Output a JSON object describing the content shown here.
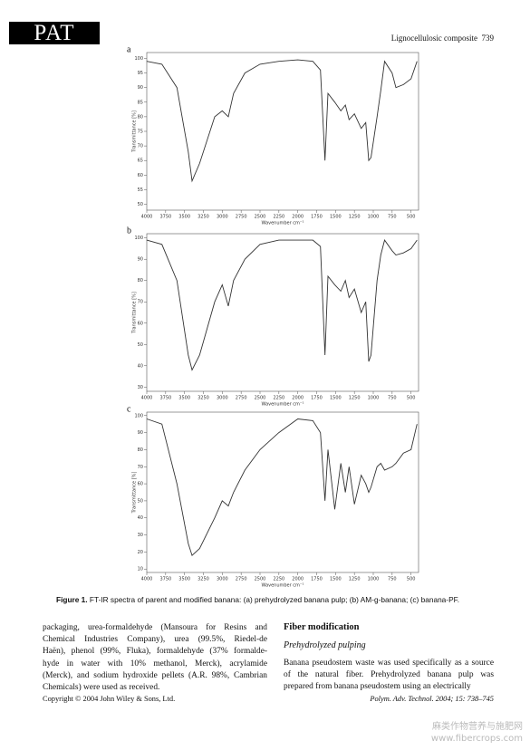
{
  "header": {
    "logo": "PAT",
    "running_title": "Lignocellulosic composite",
    "page_number": "739"
  },
  "chart_data": [
    {
      "type": "line",
      "label": "a",
      "xlabel": "Wavenumber cm⁻¹",
      "ylabel": "Transmittance [%]",
      "color": "#333333",
      "xlim": [
        4000,
        400
      ],
      "xticks": [
        4000,
        3750,
        3500,
        3250,
        3000,
        2750,
        2500,
        2250,
        2000,
        1750,
        1500,
        1250,
        1000,
        750,
        500
      ],
      "ylim": [
        48,
        102
      ],
      "yticks": [
        50,
        55,
        60,
        65,
        70,
        75,
        80,
        85,
        90,
        95,
        100
      ],
      "x": [
        4000,
        3800,
        3600,
        3450,
        3400,
        3300,
        3100,
        3000,
        2920,
        2850,
        2700,
        2500,
        2250,
        2000,
        1800,
        1700,
        1640,
        1600,
        1510,
        1430,
        1370,
        1320,
        1250,
        1160,
        1100,
        1060,
        1030,
        950,
        900,
        850,
        750,
        700,
        600,
        500,
        420
      ],
      "values": [
        99,
        98,
        90,
        68,
        58,
        64,
        80,
        82,
        80,
        88,
        95,
        98,
        99,
        99.5,
        99,
        96,
        65,
        88,
        85,
        82,
        84,
        79,
        81,
        76,
        78,
        65,
        66,
        80,
        89,
        99,
        95,
        90,
        91,
        93,
        99
      ]
    },
    {
      "type": "line",
      "label": "b",
      "xlabel": "Wavenumber cm⁻¹",
      "ylabel": "Transmittance [%]",
      "color": "#333333",
      "xlim": [
        4000,
        400
      ],
      "xticks": [
        4000,
        3750,
        3500,
        3250,
        3000,
        2750,
        2500,
        2250,
        2000,
        1750,
        1500,
        1250,
        1000,
        750,
        500
      ],
      "ylim": [
        28,
        102
      ],
      "yticks": [
        30,
        40,
        50,
        60,
        70,
        80,
        90,
        100
      ],
      "x": [
        4000,
        3800,
        3600,
        3450,
        3400,
        3300,
        3100,
        3000,
        2920,
        2850,
        2700,
        2500,
        2250,
        2000,
        1800,
        1700,
        1640,
        1600,
        1510,
        1430,
        1370,
        1320,
        1250,
        1160,
        1100,
        1060,
        1030,
        950,
        900,
        850,
        750,
        700,
        600,
        500,
        420
      ],
      "values": [
        99,
        97,
        80,
        45,
        38,
        45,
        70,
        78,
        68,
        80,
        90,
        97,
        99,
        99,
        99,
        96,
        45,
        82,
        78,
        75,
        80,
        72,
        76,
        65,
        70,
        42,
        45,
        80,
        92,
        99,
        94,
        92,
        93,
        95,
        99
      ]
    },
    {
      "type": "line",
      "label": "c",
      "xlabel": "Wavenumber cm⁻¹",
      "ylabel": "Transmittance [%]",
      "color": "#333333",
      "xlim": [
        4000,
        400
      ],
      "xticks": [
        4000,
        3750,
        3500,
        3250,
        3000,
        2750,
        2500,
        2250,
        2000,
        1750,
        1500,
        1250,
        1000,
        750,
        500
      ],
      "ylim": [
        8,
        102
      ],
      "yticks": [
        10,
        20,
        30,
        40,
        50,
        60,
        70,
        80,
        90,
        100
      ],
      "x": [
        4000,
        3800,
        3600,
        3450,
        3400,
        3300,
        3100,
        3000,
        2920,
        2850,
        2700,
        2500,
        2250,
        2000,
        1800,
        1700,
        1640,
        1600,
        1510,
        1430,
        1370,
        1320,
        1250,
        1160,
        1100,
        1060,
        1030,
        950,
        900,
        850,
        750,
        700,
        600,
        500,
        420
      ],
      "values": [
        98,
        95,
        60,
        25,
        18,
        22,
        40,
        50,
        47,
        55,
        68,
        80,
        90,
        98,
        97,
        90,
        50,
        80,
        45,
        72,
        55,
        70,
        48,
        65,
        60,
        55,
        58,
        70,
        72,
        68,
        70,
        72,
        78,
        80,
        95
      ]
    }
  ],
  "caption": {
    "label": "Figure 1.",
    "text": "FT-IR spectra of parent and modified banana: (a) prehydrolyzed banana pulp; (b) AM-g-banana; (c) banana-PF."
  },
  "body": {
    "left_lines": [
      "packaging, urea-formaldehyde (Mansoura for Resins and",
      "Chemical Industries Company), urea (99.5%, Riedel-de",
      "Haën), phenol (99%, Fluka), formaldehyde (37% formalde-",
      "hyde in water with 10% methanol, Merck), acrylamide",
      "(Merck), and sodium hydroxide pellets (A.R. 98%, Cambrian",
      "Chemicals) were used as received."
    ],
    "heading": "Fiber modification",
    "subheading": "Prehydrolyzed pulping",
    "right_lines": [
      "Banana pseudostem waste was used specifically as a source",
      "of the natural fiber. Prehydrolyzed banana pulp was",
      "prepared from banana pseudostem using an electrically"
    ]
  },
  "footer": {
    "copyright": "Copyright © 2004 John Wiley & Sons, Ltd.",
    "citation": "Polym. Adv. Technol. 2004; 15: 738–745"
  },
  "watermark": [
    "麻类作物营养与施肥网",
    "www.fibercrops.com"
  ]
}
